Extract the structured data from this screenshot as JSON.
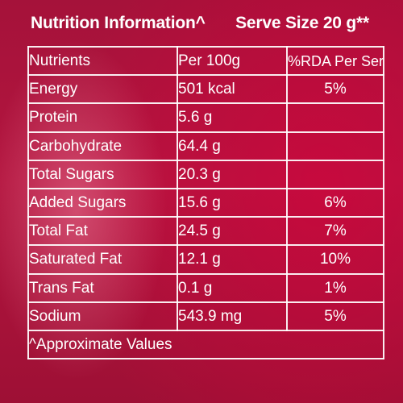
{
  "header": {
    "title": "Nutrition Information^",
    "serve_size": "Serve Size 20 g**"
  },
  "table": {
    "columns": [
      "Nutrients",
      "Per 100g",
      "%RDA Per Serve"
    ],
    "rows": [
      {
        "nutrient": "Energy",
        "per100g": "501 kcal",
        "rda": "5%",
        "indent": 0
      },
      {
        "nutrient": "Protein",
        "per100g": "5.6 g",
        "rda": "",
        "indent": 0
      },
      {
        "nutrient": "Carbohydrate",
        "per100g": "64.4 g",
        "rda": "",
        "indent": 0
      },
      {
        "nutrient": "Total Sugars",
        "per100g": "20.3 g",
        "rda": "",
        "indent": 1
      },
      {
        "nutrient": "Added Sugars",
        "per100g": "15.6 g",
        "rda": "6%",
        "indent": 2
      },
      {
        "nutrient": "Total Fat",
        "per100g": "24.5 g",
        "rda": "7%",
        "indent": 0
      },
      {
        "nutrient": "Saturated Fat",
        "per100g": "12.1 g",
        "rda": "10%",
        "indent": 1
      },
      {
        "nutrient": "Trans Fat",
        "per100g": "0.1 g",
        "rda": "1%",
        "indent": 1
      },
      {
        "nutrient": "Sodium",
        "per100g": "543.9 mg",
        "rda": "5%",
        "indent": 0
      }
    ],
    "footnote": "^Approximate Values"
  },
  "colors": {
    "background": "#a5123a",
    "text": "#ffffff",
    "border": "#ffffff"
  }
}
